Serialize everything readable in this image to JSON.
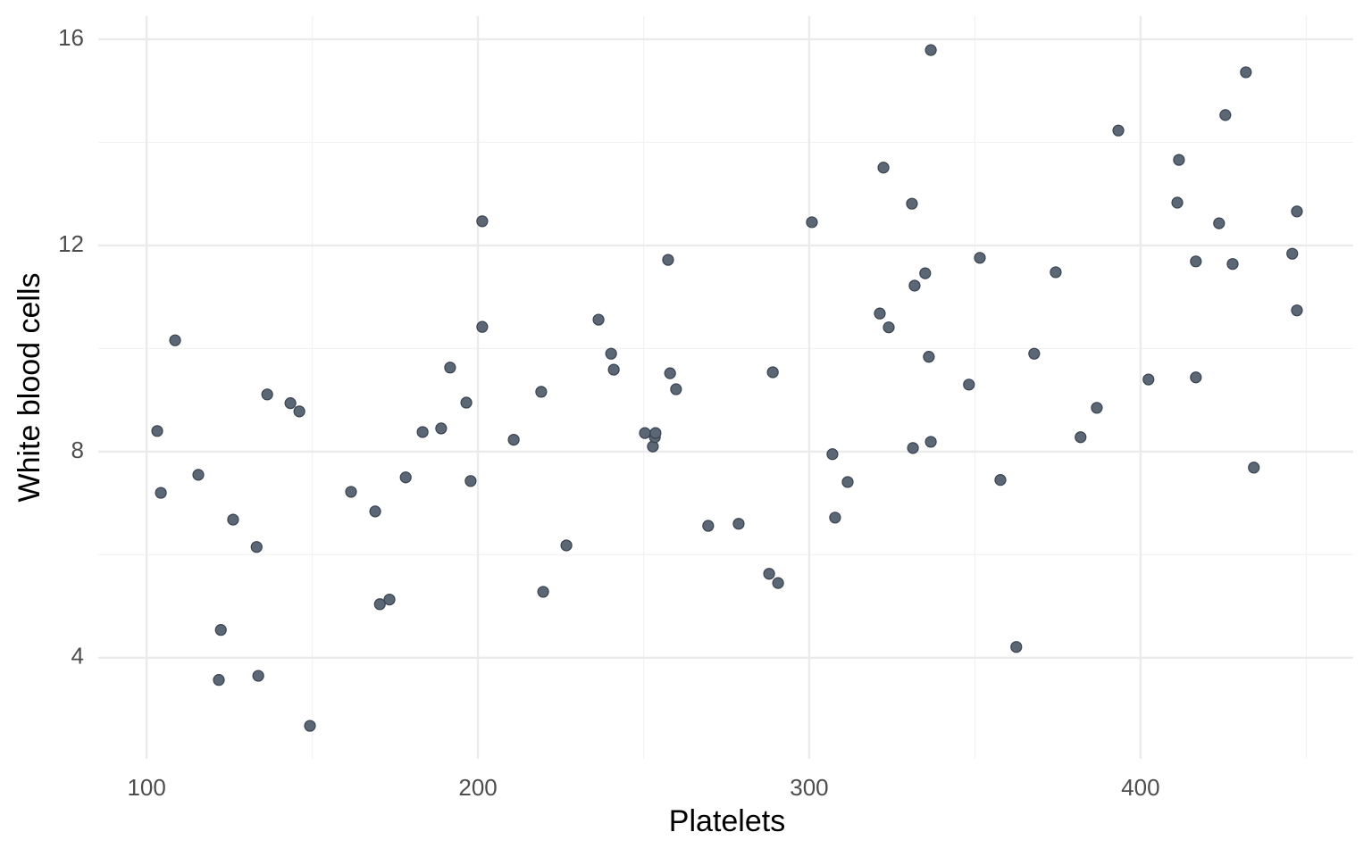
{
  "chart_data": {
    "type": "scatter",
    "x_label": "Platelets",
    "y_label": "White blood cells",
    "color": "#5b6775",
    "grid": true,
    "xlim": [
      85.4,
      464.2
    ],
    "ylim": [
      2.04,
      16.45
    ],
    "xticks": [
      100,
      200,
      300,
      400
    ],
    "yticks": [
      4,
      8,
      12,
      16
    ],
    "x_minor_grid": [
      150,
      250,
      350,
      450
    ],
    "y_minor_grid": [
      6,
      10,
      14
    ],
    "x": [
      103.2,
      104.3,
      108.6,
      115.6,
      126.1,
      122.4,
      121.8,
      133.2,
      133.7,
      136.4,
      143.4,
      146.1,
      149.3,
      161.7,
      169.0,
      170.4,
      173.3,
      178.2,
      183.3,
      188.9,
      191.6,
      196.5,
      197.8,
      201.3,
      201.3,
      210.8,
      219.1,
      219.7,
      226.7,
      236.4,
      240.2,
      241.0,
      250.4,
      252.8,
      253.4,
      253.6,
      257.4,
      258.0,
      259.8,
      269.5,
      278.7,
      287.9,
      289.0,
      290.6,
      300.8,
      307.0,
      307.8,
      311.6,
      321.3,
      322.4,
      324.0,
      331.0,
      331.3,
      331.8,
      335.0,
      336.1,
      336.7,
      336.7,
      348.2,
      351.5,
      357.7,
      362.5,
      367.9,
      374.4,
      381.9,
      386.8,
      393.3,
      402.4,
      411.1,
      411.6,
      416.7,
      416.7,
      423.7,
      425.6,
      427.8,
      431.8,
      434.2,
      445.8,
      447.2,
      447.2
    ],
    "values": [
      8.4,
      7.2,
      10.16,
      7.55,
      6.68,
      4.54,
      3.57,
      6.15,
      3.65,
      9.11,
      8.94,
      8.78,
      2.68,
      7.22,
      6.84,
      5.04,
      5.13,
      7.5,
      8.38,
      8.45,
      9.63,
      8.95,
      7.43,
      12.47,
      10.42,
      8.23,
      9.16,
      5.28,
      6.18,
      10.56,
      9.9,
      9.59,
      8.36,
      8.1,
      8.28,
      8.36,
      11.72,
      9.52,
      9.21,
      6.56,
      6.6,
      5.63,
      9.54,
      5.45,
      12.45,
      7.95,
      6.72,
      7.41,
      10.68,
      13.51,
      10.41,
      12.81,
      8.07,
      11.22,
      11.46,
      9.84,
      15.79,
      8.19,
      9.3,
      11.76,
      7.45,
      4.21,
      9.9,
      11.48,
      8.28,
      8.85,
      14.23,
      9.4,
      12.83,
      13.66,
      11.69,
      9.44,
      12.43,
      14.53,
      11.64,
      15.36,
      7.69,
      11.84,
      12.66,
      10.74
    ]
  }
}
